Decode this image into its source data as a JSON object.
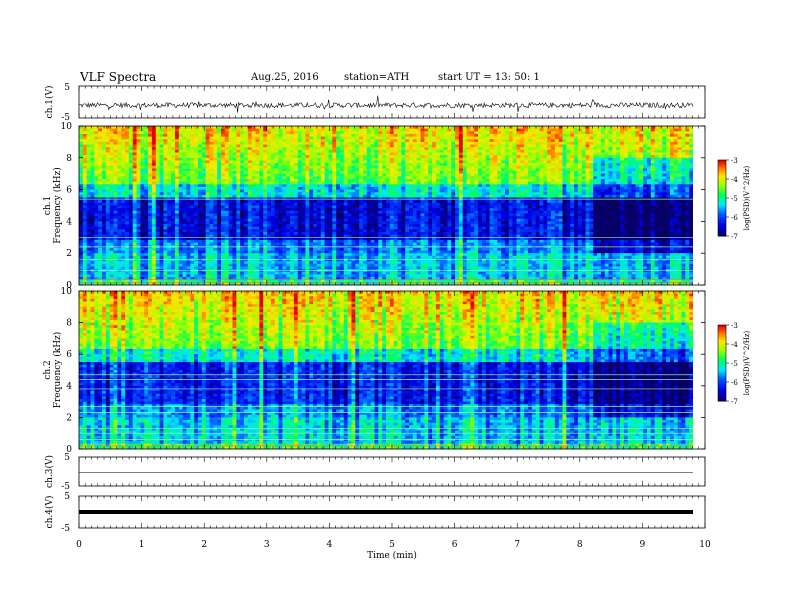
{
  "header": {
    "title": "VLF  Spectra",
    "date": "Aug.25, 2016",
    "station": "station=ATH",
    "start": "start  UT  =    13: 50: 1"
  },
  "chart_data": [
    {
      "type": "line",
      "panel": "ch1-waveform",
      "ylabel": "ch.1(V)",
      "ylim": [
        -5,
        5
      ],
      "yticks": [
        "5",
        "-5"
      ],
      "x": [
        0,
        10
      ],
      "note": "noisy waveform around -1 V"
    },
    {
      "type": "heatmap",
      "panel": "ch1-spectrogram",
      "ylabel": "ch.1 Frequency  (kHz)",
      "ylim": [
        0,
        10
      ],
      "yticks": [
        "0",
        "2",
        "4",
        "6",
        "8",
        "10"
      ],
      "colorbar_label": "log(PSD)(V^2/Hz)",
      "colorbar_range": [
        -7,
        -3
      ],
      "colorbar_ticks": [
        "-3",
        "-4",
        "-5",
        "-6",
        "-7"
      ],
      "colors": [
        "#08006b",
        "#0000ff",
        "#00ffff",
        "#00ff00",
        "#ffff00",
        "#ff8000",
        "#ff0000",
        "#ffffff"
      ]
    },
    {
      "type": "heatmap",
      "panel": "ch2-spectrogram",
      "ylabel": "ch.2 Frequency  (kHz)",
      "ylim": [
        0,
        10
      ],
      "yticks": [
        "0",
        "2",
        "4",
        "6",
        "8",
        "10"
      ],
      "colorbar_label": "log(PSD)(V^2/Hz)",
      "colorbar_range": [
        -7,
        -3
      ],
      "colorbar_ticks": [
        "-3",
        "-4",
        "-5",
        "-6",
        "-7"
      ]
    },
    {
      "type": "line",
      "panel": "ch3-waveform",
      "ylabel": "ch.3(V)",
      "yticks": [
        "5",
        "-5"
      ]
    },
    {
      "type": "line",
      "panel": "ch4-waveform",
      "ylabel": "ch.4(V)",
      "yticks": [
        "5",
        "-5"
      ]
    }
  ],
  "xaxis": {
    "label": "Time  (min)",
    "ticks": [
      "0",
      "1",
      "2",
      "3",
      "4",
      "5",
      "6",
      "7",
      "8",
      "9",
      "10"
    ],
    "xlim": [
      0,
      10
    ]
  }
}
